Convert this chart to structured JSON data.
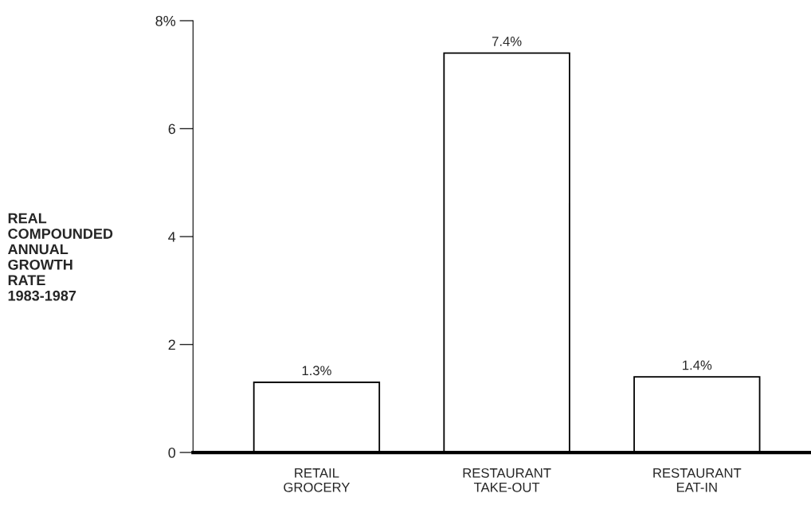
{
  "chart_data": {
    "type": "bar",
    "ylabel": "REAL\nCOMPOUNDED\nANNUAL\nGROWTH\nRATE\n1983-1987",
    "categories": [
      "RETAIL\nGROCERY",
      "RESTAURANT\nTAKE-OUT",
      "RESTAURANT\nEAT-IN"
    ],
    "values": [
      1.3,
      7.4,
      1.4
    ],
    "color": "#ffffff",
    "data_labels": true,
    "value_labels": [
      "1.3%",
      "7.4%",
      "1.4%"
    ],
    "ylim": [
      0,
      8
    ],
    "yticks": [
      0,
      2,
      4,
      6,
      {
        "value": 8,
        "label": "8%"
      }
    ],
    "grid": false,
    "legend": false
  }
}
